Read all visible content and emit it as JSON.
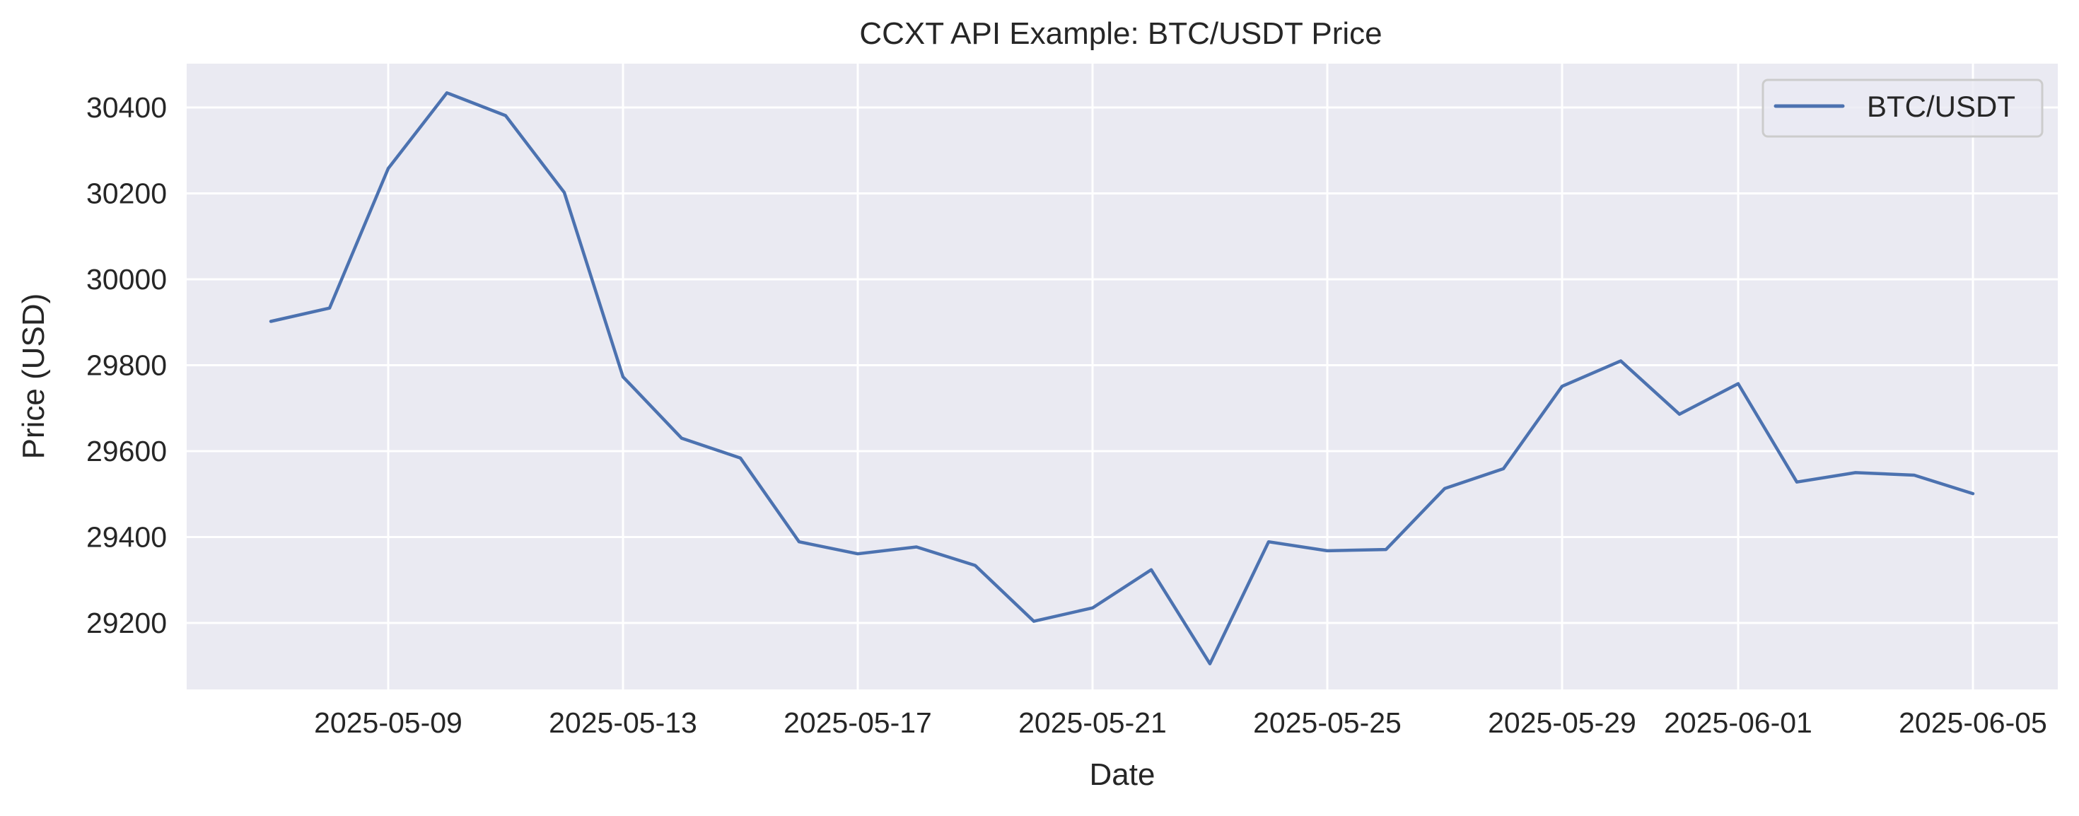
{
  "chart_data": {
    "type": "line",
    "title": "CCXT API Example: BTC/USDT Price",
    "xlabel": "Date",
    "ylabel": "Price (USD)",
    "ylim": [
      29040,
      30490
    ],
    "grid": true,
    "legend": {
      "position": "upper right",
      "entries": [
        "BTC/USDT"
      ]
    },
    "x_ticks": [
      "2025-05-09",
      "2025-05-13",
      "2025-05-17",
      "2025-05-21",
      "2025-05-25",
      "2025-05-29",
      "2025-06-01",
      "2025-06-05"
    ],
    "y_ticks": [
      29200,
      29400,
      29600,
      29800,
      30000,
      30200,
      30400
    ],
    "x": [
      "2025-05-07",
      "2025-05-08",
      "2025-05-09",
      "2025-05-10",
      "2025-05-11",
      "2025-05-12",
      "2025-05-13",
      "2025-05-14",
      "2025-05-15",
      "2025-05-16",
      "2025-05-17",
      "2025-05-18",
      "2025-05-19",
      "2025-05-20",
      "2025-05-21",
      "2025-05-22",
      "2025-05-23",
      "2025-05-24",
      "2025-05-25",
      "2025-05-26",
      "2025-05-27",
      "2025-05-28",
      "2025-05-29",
      "2025-05-30",
      "2025-05-31",
      "2025-06-01",
      "2025-06-02",
      "2025-06-03",
      "2025-06-04",
      "2025-06-05"
    ],
    "series": [
      {
        "name": "BTC/USDT",
        "color": "#4c72b0",
        "values": [
          29902,
          29933,
          30258,
          30434,
          30381,
          30202,
          29773,
          29630,
          29584,
          29389,
          29361,
          29377,
          29334,
          29204,
          29235,
          29324,
          29105,
          29389,
          29368,
          29371,
          29513,
          29559,
          29751,
          29810,
          29686,
          29757,
          29528,
          29550,
          29544,
          29501
        ]
      }
    ]
  },
  "colors": {
    "plot_background": "#eaeaf2",
    "grid": "#ffffff",
    "text": "#262626",
    "legend_border": "#cccccc"
  }
}
